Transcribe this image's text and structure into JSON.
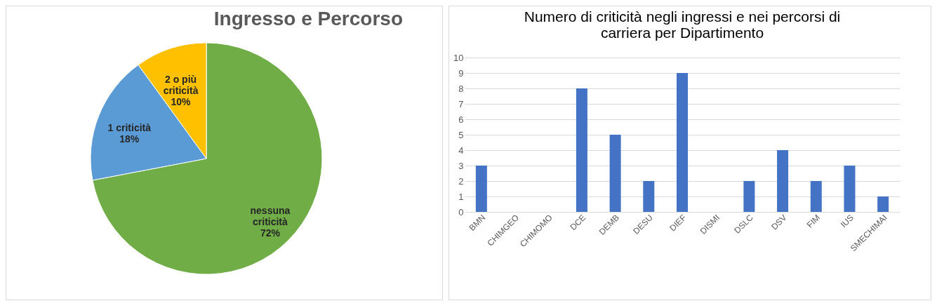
{
  "chart_data": [
    {
      "type": "pie",
      "title": "Ingresso e Percorso",
      "categories": [
        "nessuna criticità",
        "1 criticità",
        "2 o più criticità"
      ],
      "values": [
        72,
        18,
        10
      ],
      "colors": [
        "#70ad47",
        "#5b9bd5",
        "#ffc000"
      ],
      "value_labels": [
        "72%",
        "18%",
        "10%"
      ],
      "legend": false
    },
    {
      "type": "bar",
      "title": "Numero di criticità negli ingressi e nei percorsi di carriera per Dipartimento",
      "categories": [
        "BMN",
        "CHIMGEO",
        "CHIMOMO",
        "DCE",
        "DEMB",
        "DESU",
        "DIEF",
        "DISMI",
        "DSLC",
        "DSV",
        "FIM",
        "IUS",
        "SMECHIMAI"
      ],
      "values": [
        3,
        0,
        0,
        8,
        5,
        2,
        9,
        0,
        2,
        4,
        2,
        3,
        1
      ],
      "color": "#4472c4",
      "ylim": [
        0,
        10
      ],
      "yticks": [
        0,
        1,
        2,
        3,
        4,
        5,
        6,
        7,
        8,
        9,
        10
      ],
      "grid": "y"
    }
  ]
}
